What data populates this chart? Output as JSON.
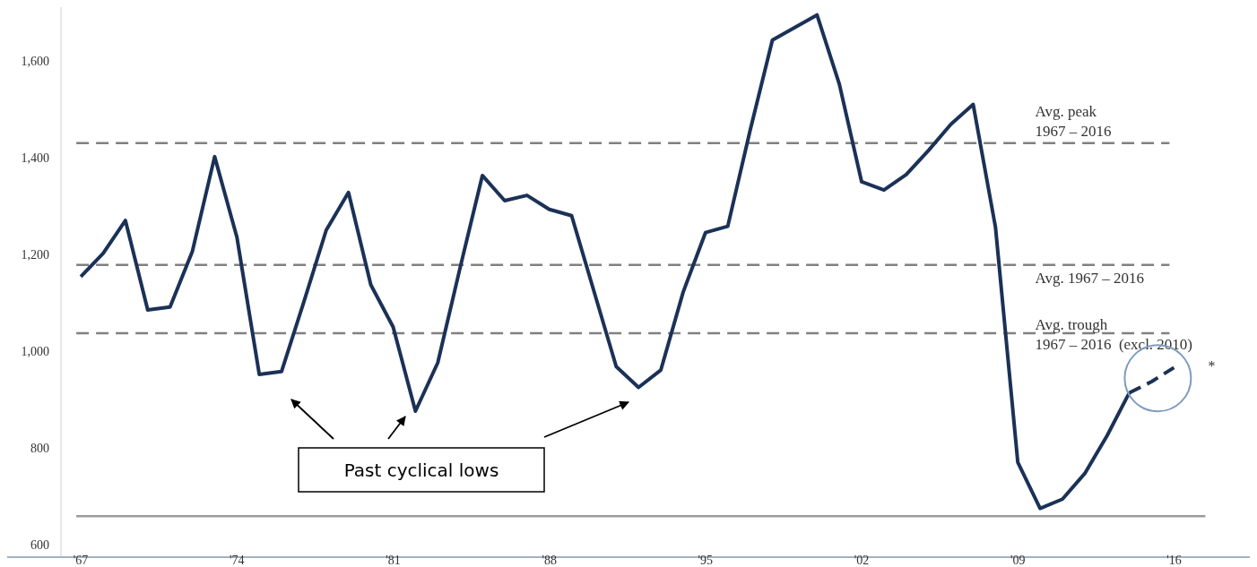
{
  "chart_data": {
    "type": "line",
    "xlim": [
      1963.7,
      2019.4
    ],
    "xticks": [
      {
        "value": 1967,
        "label": "'67"
      },
      {
        "value": 1974,
        "label": "'74"
      },
      {
        "value": 1981,
        "label": "'81"
      },
      {
        "value": 1988,
        "label": "'88"
      },
      {
        "value": 1995,
        "label": "'95"
      },
      {
        "value": 2002,
        "label": "'02"
      },
      {
        "value": 2009,
        "label": "'09"
      },
      {
        "value": 2016,
        "label": "'16"
      }
    ],
    "ylim": [
      577,
      1712
    ],
    "yticks": [
      {
        "value": 600,
        "label": "600"
      },
      {
        "value": 800,
        "label": "800"
      },
      {
        "value": 1000,
        "label": "1,000"
      },
      {
        "value": 1200,
        "label": "1,200"
      },
      {
        "value": 1400,
        "label": "1,400"
      },
      {
        "value": 1600,
        "label": "1,600"
      }
    ],
    "grid": false,
    "series": [
      {
        "color": "#1b3157",
        "line_style": "solid",
        "x": [
          1967,
          1968,
          1969,
          1970,
          1971,
          1972,
          1973,
          1974,
          1975,
          1976,
          1977,
          1978,
          1979,
          1980,
          1981,
          1982,
          1983,
          1984,
          1985,
          1986,
          1987,
          1988,
          1989,
          1990,
          1991,
          1992,
          1993,
          1994,
          1995,
          1996,
          1997,
          1998,
          1999,
          2000,
          2001,
          2002,
          2003,
          2004,
          2005,
          2006,
          2007,
          2008,
          2009,
          2010,
          2011,
          2012,
          2013,
          2014
        ],
        "values": [
          1155,
          1203,
          1271,
          1086,
          1092,
          1207,
          1403,
          1236,
          953,
          959,
          1103,
          1251,
          1329,
          1138,
          1051,
          877,
          977,
          1173,
          1364,
          1312,
          1323,
          1294,
          1281,
          1125,
          969,
          926,
          962,
          1123,
          1246,
          1259,
          1457,
          1644,
          1670,
          1696,
          1553,
          1351,
          1334,
          1366,
          1416,
          1470,
          1511,
          1257,
          771,
          676,
          695,
          748,
          826,
          915
        ]
      },
      {
        "color": "#1b3157",
        "line_style": "dashed",
        "x": [
          2014,
          2015,
          2016
        ],
        "values": [
          915,
          938,
          967
        ]
      }
    ],
    "ref_lines": [
      {
        "axis": "y",
        "value": 1431,
        "label": "Avg. peak\n1967 – 2016",
        "color": "#808080",
        "line_style": "dashed"
      },
      {
        "axis": "y",
        "value": 1179,
        "label": "Avg. 1967 – 2016",
        "color": "#808080",
        "line_style": "dashed"
      },
      {
        "axis": "y",
        "value": 1038,
        "label": "Avg. trough\n1967 – 2016  (excl. 2010)",
        "color": "#808080",
        "line_style": "dashed"
      },
      {
        "axis": "y",
        "value": 660,
        "color": "#9a9a9a",
        "line_style": "solid"
      }
    ],
    "annotations": [
      "Past cyclical lows",
      {
        "text": "*",
        "x": 2016,
        "y": 967
      }
    ]
  }
}
